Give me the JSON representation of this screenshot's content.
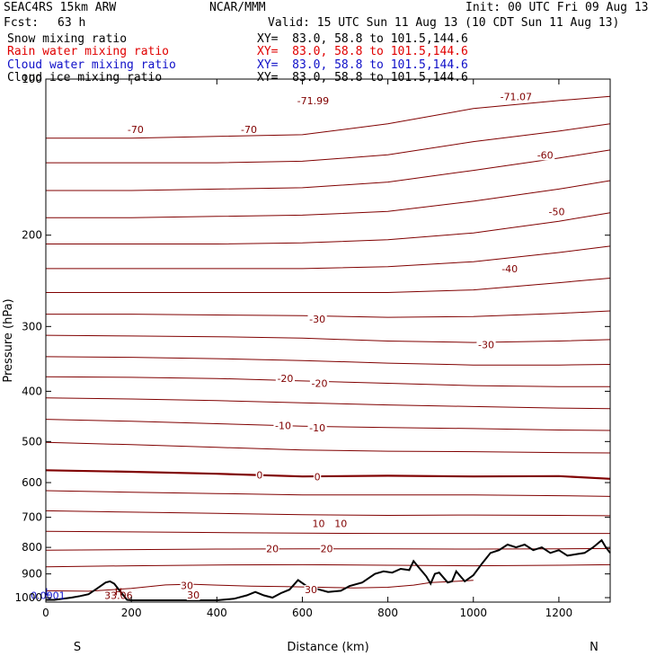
{
  "header": {
    "model": "SEAC4RS 15km ARW",
    "center": "NCAR/MMM",
    "init": "Init: 00 UTC Fri 09 Aug 13",
    "fcst_label": "Fcst:",
    "fcst_value": "63 h",
    "valid": "Valid: 15 UTC Sun 11 Aug 13 (10 CDT Sun 11 Aug 13)",
    "fields": [
      {
        "name": "Snow mixing ratio",
        "xy": "XY=  83.0, 58.8 to 101.5,144.6",
        "color": "#000000"
      },
      {
        "name": "Rain water mixing ratio",
        "xy": "XY=  83.0, 58.8 to 101.5,144.6",
        "color": "#e00000"
      },
      {
        "name": "Cloud water mixing ratio",
        "xy": "XY=  83.0, 58.8 to 101.5,144.6",
        "color": "#1010c8"
      },
      {
        "name": "Cloud ice mixing ratio",
        "xy": "XY=  83.0, 58.8 to 101.5,144.6",
        "color": "#000000"
      }
    ]
  },
  "chart_data": {
    "type": "line",
    "xlabel": "Distance (km)",
    "ylabel": "Pressure (hPa)",
    "xlim": [
      0,
      1320
    ],
    "ylim": [
      1020,
      100
    ],
    "y_scale": "log-pressure (inverted)",
    "xticks": [
      0,
      200,
      400,
      600,
      800,
      1000,
      1200
    ],
    "yticks": [
      100,
      200,
      300,
      400,
      500,
      600,
      700,
      800,
      900,
      1000
    ],
    "xtick_labels": [
      "0",
      "200",
      "400",
      "600",
      "800",
      "1000",
      "1200"
    ],
    "ytick_labels": [
      "100",
      "200",
      "300",
      "400",
      "500",
      "600",
      "700",
      "800",
      "900",
      "1000"
    ],
    "endpoint_labels": {
      "left": "S",
      "right": "N"
    },
    "isotherm_color": "#800000",
    "terrain_color": "#000000",
    "isotherm_labels": [
      {
        "text": "-70",
        "x": 210,
        "p": 125
      },
      {
        "text": "-70",
        "x": 475,
        "p": 125
      },
      {
        "text": "-71.99",
        "x": 625,
        "p": 110
      },
      {
        "text": "-71.07",
        "x": 1100,
        "p": 108
      },
      {
        "text": "-60",
        "x": 1168,
        "p": 140
      },
      {
        "text": "-50",
        "x": 1195,
        "p": 180
      },
      {
        "text": "-40",
        "x": 1085,
        "p": 232
      },
      {
        "text": "-30",
        "x": 635,
        "p": 290
      },
      {
        "text": "-30",
        "x": 1030,
        "p": 325
      },
      {
        "text": "-20",
        "x": 560,
        "p": 378
      },
      {
        "text": "-20",
        "x": 640,
        "p": 386
      },
      {
        "text": "-10",
        "x": 555,
        "p": 466
      },
      {
        "text": "-10",
        "x": 635,
        "p": 470
      },
      {
        "text": "0",
        "x": 500,
        "p": 580
      },
      {
        "text": "0",
        "x": 635,
        "p": 585
      },
      {
        "text": "10",
        "x": 638,
        "p": 720
      },
      {
        "text": "10",
        "x": 690,
        "p": 720
      },
      {
        "text": "20",
        "x": 530,
        "p": 805
      },
      {
        "text": "20",
        "x": 657,
        "p": 805
      },
      {
        "text": "30",
        "x": 330,
        "p": 948
      },
      {
        "text": "30",
        "x": 620,
        "p": 965
      },
      {
        "text": "30",
        "x": 345,
        "p": 987
      }
    ],
    "isotherms": [
      {
        "t": -70,
        "x": [
          0,
          200,
          400,
          600,
          800,
          1000,
          1200,
          1320
        ],
        "p": [
          130,
          130,
          129,
          128,
          122,
          114,
          110,
          108
        ]
      },
      {
        "t": -65,
        "x": [
          0,
          200,
          400,
          600,
          800,
          1000,
          1200,
          1320
        ],
        "p": [
          145,
          145,
          145,
          144,
          140,
          132,
          126,
          122
        ]
      },
      {
        "t": -60,
        "x": [
          0,
          200,
          400,
          600,
          800,
          1000,
          1200,
          1320
        ],
        "p": [
          164,
          164,
          163,
          162,
          158,
          150,
          142,
          137
        ]
      },
      {
        "t": -55,
        "x": [
          0,
          200,
          400,
          600,
          800,
          1000,
          1200,
          1320
        ],
        "p": [
          185,
          185,
          184,
          183,
          180,
          172,
          163,
          157
        ]
      },
      {
        "t": -50,
        "x": [
          0,
          200,
          400,
          600,
          800,
          1000,
          1200,
          1320
        ],
        "p": [
          208,
          208,
          208,
          207,
          204,
          198,
          188,
          181
        ]
      },
      {
        "t": -45,
        "x": [
          0,
          200,
          400,
          600,
          800,
          1000,
          1200,
          1320
        ],
        "p": [
          232,
          232,
          232,
          232,
          230,
          225,
          216,
          210
        ]
      },
      {
        "t": -40,
        "x": [
          0,
          200,
          400,
          600,
          800,
          1000,
          1200,
          1320
        ],
        "p": [
          258,
          258,
          258,
          258,
          258,
          255,
          247,
          242
        ]
      },
      {
        "t": -35,
        "x": [
          0,
          200,
          400,
          600,
          800,
          1000,
          1200,
          1320
        ],
        "p": [
          284,
          284,
          285,
          286,
          288,
          287,
          283,
          280
        ]
      },
      {
        "t": -30,
        "x": [
          0,
          200,
          400,
          600,
          800,
          1000,
          1200,
          1320
        ],
        "p": [
          312,
          313,
          314,
          316,
          320,
          322,
          320,
          318
        ]
      },
      {
        "t": -25,
        "x": [
          0,
          200,
          400,
          600,
          800,
          1000,
          1200,
          1320
        ],
        "p": [
          343,
          344,
          346,
          349,
          353,
          356,
          356,
          355
        ]
      },
      {
        "t": -20,
        "x": [
          0,
          200,
          400,
          600,
          800,
          1000,
          1200,
          1320
        ],
        "p": [
          375,
          376,
          378,
          382,
          386,
          390,
          392,
          392
        ]
      },
      {
        "t": -15,
        "x": [
          0,
          200,
          400,
          600,
          800,
          1000,
          1200,
          1320
        ],
        "p": [
          412,
          414,
          417,
          421,
          425,
          428,
          431,
          432
        ]
      },
      {
        "t": -10,
        "x": [
          0,
          200,
          400,
          600,
          800,
          1000,
          1200,
          1320
        ],
        "p": [
          453,
          457,
          462,
          467,
          470,
          472,
          475,
          476
        ]
      },
      {
        "t": -5,
        "x": [
          0,
          200,
          400,
          600,
          800,
          1000,
          1200,
          1320
        ],
        "p": [
          502,
          507,
          513,
          519,
          522,
          523,
          525,
          526
        ]
      },
      {
        "t": 0,
        "x": [
          0,
          200,
          400,
          600,
          800,
          1000,
          1200,
          1320
        ],
        "p": [
          568,
          572,
          577,
          584,
          582,
          584,
          583,
          590
        ]
      },
      {
        "t": 5,
        "x": [
          0,
          200,
          400,
          600,
          800,
          1000,
          1200,
          1320
        ],
        "p": [
          622,
          626,
          630,
          634,
          634,
          634,
          636,
          638
        ]
      },
      {
        "t": 10,
        "x": [
          0,
          200,
          400,
          600,
          800,
          1000,
          1200,
          1320
        ],
        "p": [
          680,
          684,
          688,
          692,
          694,
          693,
          694,
          695
        ]
      },
      {
        "t": 15,
        "x": [
          0,
          200,
          400,
          600,
          800,
          1000,
          1200,
          1320
        ],
        "p": [
          745,
          747,
          749,
          751,
          752,
          752,
          752,
          752
        ]
      },
      {
        "t": 20,
        "x": [
          0,
          200,
          400,
          600,
          800,
          1000,
          1200,
          1320
        ],
        "p": [
          810,
          808,
          806,
          805,
          805,
          806,
          805,
          804
        ]
      },
      {
        "t": 25,
        "x": [
          0,
          200,
          400,
          600,
          800,
          1000,
          1200,
          1320
        ],
        "p": [
          872,
          868,
          865,
          864,
          866,
          868,
          866,
          864
        ]
      },
      {
        "t": 30,
        "x": [
          0,
          100,
          200,
          280,
          340,
          400,
          480,
          560,
          640,
          720,
          800,
          860,
          900,
          960,
          1000
        ],
        "p": [
          970,
          972,
          960,
          945,
          942,
          946,
          950,
          952,
          955,
          958,
          955,
          946,
          935,
          930,
          926
        ]
      }
    ],
    "terrain": {
      "x": [
        0,
        20,
        40,
        60,
        80,
        100,
        120,
        140,
        150,
        160,
        175,
        190,
        200,
        220,
        300,
        400,
        440,
        470,
        490,
        510,
        530,
        550,
        570,
        590,
        610,
        630,
        660,
        690,
        710,
        740,
        770,
        790,
        810,
        830,
        850,
        860,
        870,
        890,
        900,
        910,
        920,
        940,
        950,
        960,
        980,
        1000,
        1020,
        1040,
        1060,
        1080,
        1100,
        1120,
        1140,
        1160,
        1180,
        1200,
        1220,
        1240,
        1260,
        1280,
        1300,
        1310,
        1320
      ],
      "p": [
        1010,
        1010,
        1005,
        1000,
        993,
        985,
        960,
        935,
        930,
        940,
        975,
        1010,
        1012,
        1012,
        1012,
        1012,
        1005,
        990,
        975,
        990,
        1000,
        980,
        965,
        925,
        950,
        960,
        975,
        970,
        950,
        935,
        900,
        890,
        895,
        880,
        885,
        850,
        870,
        910,
        940,
        900,
        895,
        935,
        930,
        890,
        930,
        905,
        860,
        820,
        810,
        790,
        800,
        790,
        810,
        800,
        820,
        810,
        830,
        825,
        820,
        800,
        775,
        800,
        820
      ]
    }
  },
  "annotations": [
    {
      "text": "H",
      "x": 170,
      "p": 990,
      "color": "#800000"
    },
    {
      "text": "33.06",
      "x": 170,
      "p": 1005,
      "color": "#800000"
    },
    {
      "text": "L",
      "x": 5,
      "p": 990,
      "color": "#1010c8"
    },
    {
      "text": "0.0001",
      "x": 5,
      "p": 1005,
      "color": "#1010c8"
    }
  ]
}
